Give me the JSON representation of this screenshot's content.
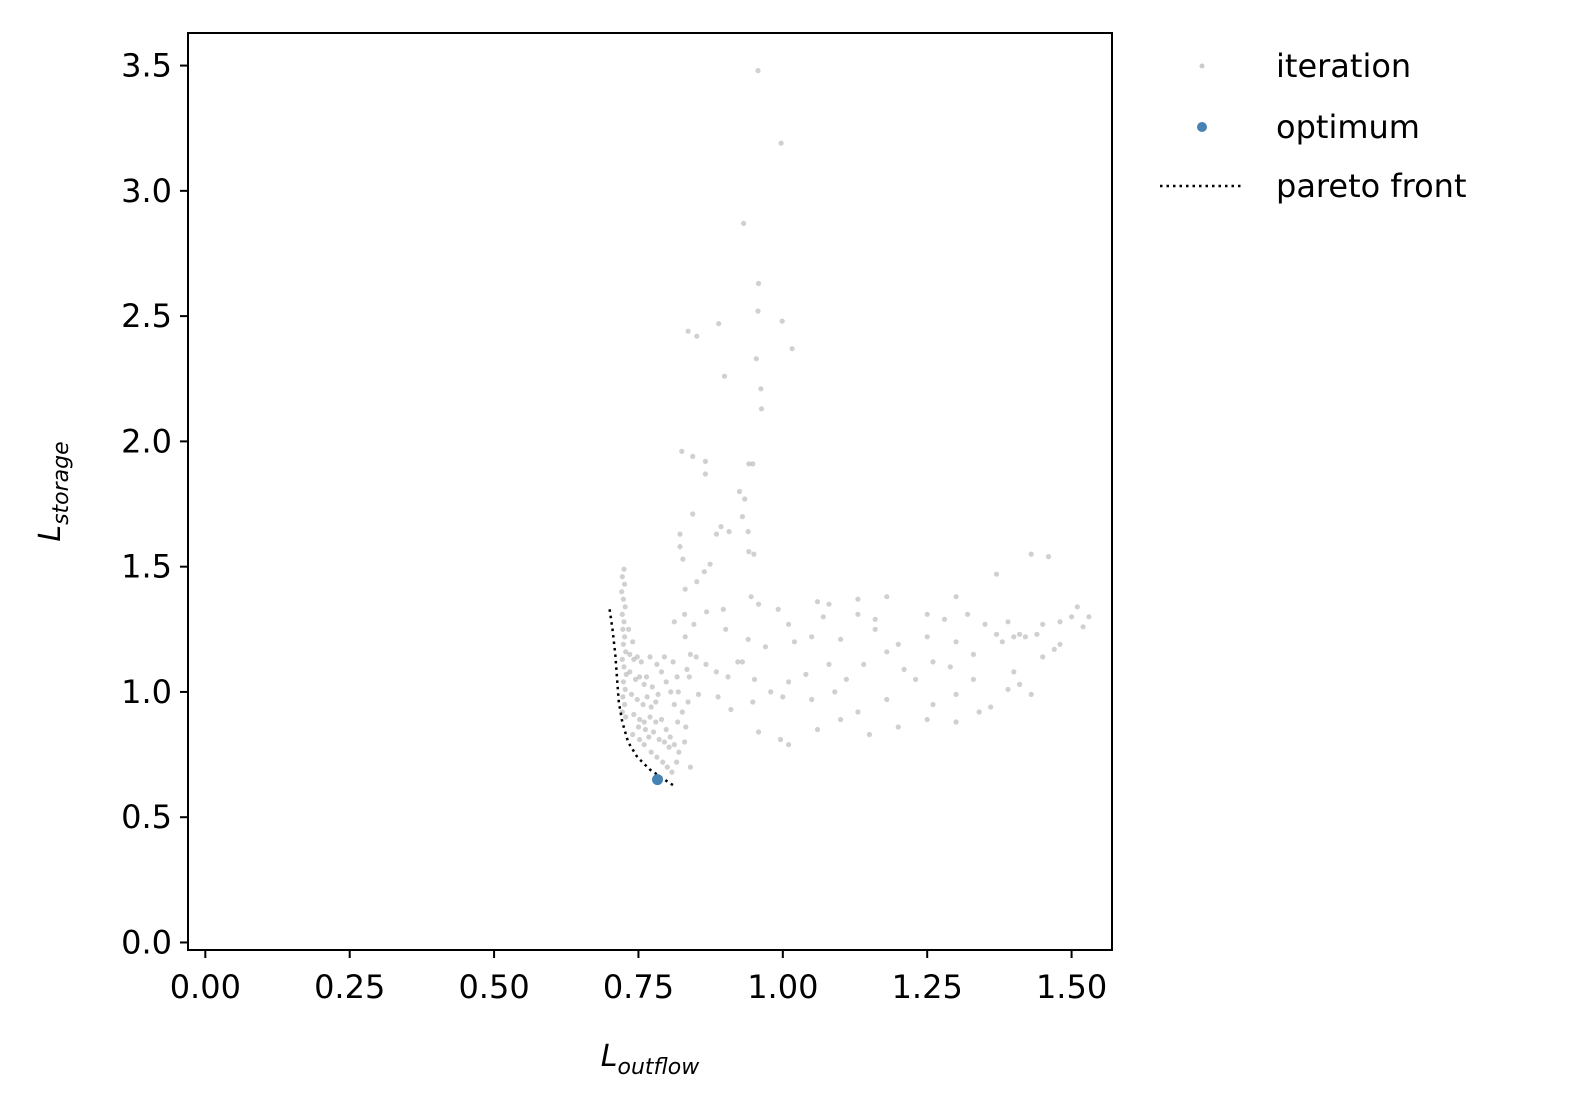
{
  "chart_data": {
    "type": "scatter",
    "title": "",
    "xlabel": {
      "main": "L",
      "sub": "outflow"
    },
    "ylabel": {
      "main": "L",
      "sub": "storage"
    },
    "xlim": [
      -0.03,
      1.57
    ],
    "ylim": [
      -0.03,
      3.63
    ],
    "xticks": [
      "0.00",
      "0.25",
      "0.50",
      "0.75",
      "1.00",
      "1.25",
      "1.50"
    ],
    "yticks": [
      "0.0",
      "0.5",
      "1.0",
      "1.5",
      "2.0",
      "2.5",
      "3.0",
      "3.5"
    ],
    "grid": false,
    "legend": {
      "placement": "outside-top-right",
      "entries": [
        {
          "label": "iteration",
          "marker": "dot",
          "color": "#a9a9a9"
        },
        {
          "label": "optimum",
          "marker": "dot",
          "color": "#4682b4"
        },
        {
          "label": "pareto front",
          "marker": "dotted-line",
          "color": "#000000"
        }
      ]
    },
    "series": [
      {
        "name": "iteration",
        "color": "#a9a9a9",
        "points": [
          [
            0.957,
            3.48
          ],
          [
            0.997,
            3.19
          ],
          [
            0.932,
            2.87
          ],
          [
            0.958,
            2.63
          ],
          [
            0.957,
            2.52
          ],
          [
            0.999,
            2.48
          ],
          [
            0.836,
            2.44
          ],
          [
            0.851,
            2.42
          ],
          [
            0.889,
            2.47
          ],
          [
            0.954,
            2.33
          ],
          [
            1.016,
            2.37
          ],
          [
            0.962,
            2.21
          ],
          [
            0.899,
            2.26
          ],
          [
            0.963,
            2.13
          ],
          [
            0.825,
            1.96
          ],
          [
            0.844,
            1.94
          ],
          [
            0.866,
            1.92
          ],
          [
            0.866,
            1.87
          ],
          [
            0.941,
            1.91
          ],
          [
            0.948,
            1.91
          ],
          [
            0.925,
            1.8
          ],
          [
            0.934,
            1.77
          ],
          [
            0.844,
            1.71
          ],
          [
            0.893,
            1.66
          ],
          [
            0.907,
            1.64
          ],
          [
            0.885,
            1.63
          ],
          [
            0.93,
            1.7
          ],
          [
            0.94,
            1.64
          ],
          [
            0.822,
            1.63
          ],
          [
            0.822,
            1.58
          ],
          [
            0.941,
            1.56
          ],
          [
            0.95,
            1.55
          ],
          [
            0.874,
            1.51
          ],
          [
            0.864,
            1.48
          ],
          [
            0.827,
            1.53
          ],
          [
            0.831,
            1.41
          ],
          [
            0.851,
            1.44
          ],
          [
            0.945,
            1.38
          ],
          [
            0.958,
            1.35
          ],
          [
            1.06,
            1.36
          ],
          [
            1.13,
            1.37
          ],
          [
            1.18,
            1.38
          ],
          [
            1.37,
            1.47
          ],
          [
            1.43,
            1.55
          ],
          [
            1.46,
            1.54
          ],
          [
            1.3,
            1.38
          ],
          [
            1.08,
            1.35
          ],
          [
            0.992,
            1.33
          ],
          [
            0.897,
            1.33
          ],
          [
            0.868,
            1.32
          ],
          [
            0.83,
            1.31
          ],
          [
            0.846,
            1.27
          ],
          [
            0.812,
            1.28
          ],
          [
            0.831,
            1.22
          ],
          [
            0.901,
            1.25
          ],
          [
            1.01,
            1.27
          ],
          [
            1.02,
            1.2
          ],
          [
            1.13,
            1.31
          ],
          [
            1.16,
            1.25
          ],
          [
            1.2,
            1.19
          ],
          [
            1.25,
            1.31
          ],
          [
            1.28,
            1.29
          ],
          [
            1.32,
            1.31
          ],
          [
            1.35,
            1.27
          ],
          [
            1.37,
            1.23
          ],
          [
            1.39,
            1.28
          ],
          [
            1.4,
            1.22
          ],
          [
            1.41,
            1.23
          ],
          [
            1.42,
            1.22
          ],
          [
            1.45,
            1.27
          ],
          [
            1.48,
            1.28
          ],
          [
            1.5,
            1.3
          ],
          [
            1.52,
            1.26
          ],
          [
            1.53,
            1.3
          ],
          [
            1.51,
            1.34
          ],
          [
            1.48,
            1.19
          ],
          [
            1.44,
            1.23
          ],
          [
            1.47,
            1.17
          ],
          [
            1.38,
            1.2
          ],
          [
            1.33,
            1.15
          ],
          [
            1.29,
            1.1
          ],
          [
            1.26,
            1.12
          ],
          [
            1.23,
            1.05
          ],
          [
            1.21,
            1.09
          ],
          [
            1.14,
            1.11
          ],
          [
            1.11,
            1.05
          ],
          [
            1.08,
            1.11
          ],
          [
            1.04,
            1.07
          ],
          [
            1.01,
            1.04
          ],
          [
            0.979,
            1.0
          ],
          [
            0.951,
            1.05
          ],
          [
            0.922,
            1.12
          ],
          [
            0.905,
            1.06
          ],
          [
            0.885,
            1.08
          ],
          [
            0.867,
            1.11
          ],
          [
            0.85,
            1.14
          ],
          [
            0.84,
            1.15
          ],
          [
            0.838,
            1.06
          ],
          [
            0.834,
            1.09
          ],
          [
            0.854,
            0.99
          ],
          [
            0.888,
            0.98
          ],
          [
            0.91,
            0.93
          ],
          [
            0.948,
            0.96
          ],
          [
            0.958,
            0.84
          ],
          [
            0.996,
            0.81
          ],
          [
            1.01,
            0.79
          ],
          [
            1.06,
            0.85
          ],
          [
            1.1,
            0.89
          ],
          [
            1.13,
            0.92
          ],
          [
            1.15,
            0.83
          ],
          [
            1.2,
            0.86
          ],
          [
            1.25,
            0.89
          ],
          [
            1.3,
            0.88
          ],
          [
            1.34,
            0.92
          ],
          [
            1.36,
            0.94
          ],
          [
            1.39,
            1.01
          ],
          [
            1.41,
            1.03
          ],
          [
            1.43,
            0.99
          ],
          [
            1.3,
            0.99
          ],
          [
            1.26,
            0.95
          ],
          [
            1.18,
            0.97
          ],
          [
            1.09,
            1.0
          ],
          [
            1.05,
            0.97
          ],
          [
            1.0,
            0.98
          ],
          [
            1.1,
            1.21
          ],
          [
            1.05,
            1.22
          ],
          [
            0.97,
            1.18
          ],
          [
            0.94,
            1.21
          ],
          [
            0.93,
            1.12
          ],
          [
            1.25,
            1.22
          ],
          [
            1.33,
            1.05
          ],
          [
            1.4,
            1.08
          ],
          [
            1.45,
            1.14
          ],
          [
            1.16,
            1.29
          ],
          [
            1.07,
            1.3
          ],
          [
            1.18,
            1.16
          ],
          [
            1.3,
            1.2
          ],
          [
            0.725,
            1.49
          ],
          [
            0.722,
            1.46
          ],
          [
            0.726,
            1.43
          ],
          [
            0.721,
            1.4
          ],
          [
            0.724,
            1.37
          ],
          [
            0.727,
            1.34
          ],
          [
            0.722,
            1.31
          ],
          [
            0.725,
            1.28
          ],
          [
            0.723,
            1.25
          ],
          [
            0.726,
            1.22
          ],
          [
            0.724,
            1.19
          ],
          [
            0.728,
            1.16
          ],
          [
            0.722,
            1.13
          ],
          [
            0.725,
            1.1
          ],
          [
            0.729,
            1.07
          ],
          [
            0.724,
            1.04
          ],
          [
            0.727,
            1.01
          ],
          [
            0.723,
            0.98
          ],
          [
            0.726,
            0.95
          ],
          [
            0.722,
            0.92
          ],
          [
            0.728,
            0.9
          ],
          [
            0.735,
            1.15
          ],
          [
            0.742,
            1.13
          ],
          [
            0.748,
            1.14
          ],
          [
            0.755,
            1.12
          ],
          [
            0.735,
            1.08
          ],
          [
            0.745,
            1.05
          ],
          [
            0.752,
            1.06
          ],
          [
            0.76,
            1.03
          ],
          [
            0.738,
            0.99
          ],
          [
            0.748,
            0.97
          ],
          [
            0.758,
            0.95
          ],
          [
            0.765,
            0.98
          ],
          [
            0.772,
            0.94
          ],
          [
            0.78,
            0.96
          ],
          [
            0.742,
            0.91
          ],
          [
            0.752,
            0.89
          ],
          [
            0.76,
            0.88
          ],
          [
            0.77,
            0.9
          ],
          [
            0.78,
            0.88
          ],
          [
            0.79,
            0.89
          ],
          [
            0.798,
            0.85
          ],
          [
            0.805,
            0.82
          ],
          [
            0.812,
            0.79
          ],
          [
            0.776,
            0.84
          ],
          [
            0.786,
            0.81
          ],
          [
            0.795,
            0.8
          ],
          [
            0.803,
            0.78
          ],
          [
            0.768,
            0.82
          ],
          [
            0.76,
            0.79
          ],
          [
            0.772,
            0.76
          ],
          [
            0.782,
            0.74
          ],
          [
            0.792,
            0.72
          ],
          [
            0.8,
            0.7
          ],
          [
            0.808,
            0.68
          ],
          [
            0.816,
            0.72
          ],
          [
            0.82,
            0.76
          ],
          [
            0.818,
            0.88
          ],
          [
            0.812,
            0.95
          ],
          [
            0.806,
            1.0
          ],
          [
            0.798,
            1.04
          ],
          [
            0.79,
            1.08
          ],
          [
            0.782,
            1.11
          ],
          [
            0.77,
            1.14
          ],
          [
            0.795,
            1.14
          ],
          [
            0.81,
            1.12
          ],
          [
            0.817,
            1.06
          ],
          [
            0.819,
            1.0
          ],
          [
            0.74,
            1.2
          ],
          [
            0.733,
            1.25
          ],
          [
            0.75,
            0.86
          ],
          [
            0.762,
            0.85
          ],
          [
            0.84,
            0.7
          ],
          [
            0.83,
            0.8
          ],
          [
            0.826,
            0.92
          ],
          [
            0.74,
            0.83
          ],
          [
            0.752,
            0.81
          ],
          [
            0.784,
            0.99
          ],
          [
            0.774,
            1.02
          ],
          [
            0.764,
            1.06
          ],
          [
            0.832,
            0.86
          ],
          [
            0.836,
            0.96
          ]
        ]
      },
      {
        "name": "optimum",
        "color": "#4682b4",
        "points": [
          [
            0.783,
            0.65
          ]
        ]
      },
      {
        "name": "pareto front",
        "color": "#000000",
        "points": [
          [
            0.7,
            1.33
          ],
          [
            0.705,
            1.25
          ],
          [
            0.71,
            1.15
          ],
          [
            0.713,
            1.05
          ],
          [
            0.716,
            0.96
          ],
          [
            0.722,
            0.88
          ],
          [
            0.732,
            0.8
          ],
          [
            0.748,
            0.74
          ],
          [
            0.77,
            0.69
          ],
          [
            0.795,
            0.65
          ],
          [
            0.815,
            0.62
          ]
        ]
      }
    ]
  }
}
